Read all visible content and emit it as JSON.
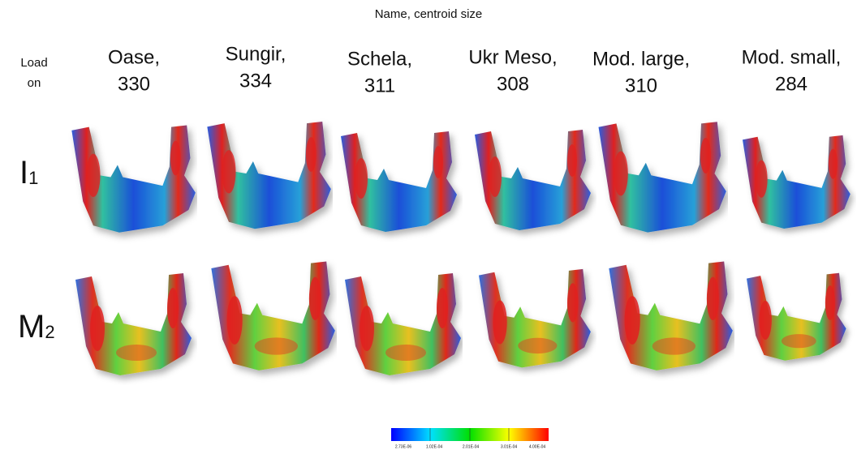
{
  "header": {
    "title": "Name, centroid size",
    "row_header": [
      "Load",
      "on"
    ]
  },
  "columns": [
    {
      "name": "Oase,",
      "size": "330"
    },
    {
      "name": "Sungir,",
      "size": "334"
    },
    {
      "name": "Schela,",
      "size": "311"
    },
    {
      "name": "Ukr Meso,",
      "size": "308"
    },
    {
      "name": "Mod. large,",
      "size": "310"
    },
    {
      "name": "Mod. small,",
      "size": "284"
    }
  ],
  "rows": [
    {
      "label": "I",
      "subscript": "1"
    },
    {
      "label": "M",
      "subscript": "2"
    }
  ],
  "colorbar": {
    "labels": [
      "2.73E-06",
      "1.02E-04",
      "2.01E-04",
      "3.01E-04",
      "4.00E-04"
    ]
  }
}
